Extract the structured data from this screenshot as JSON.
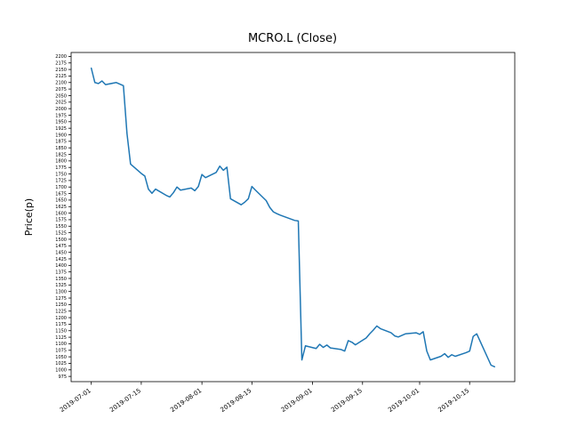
{
  "figure": {
    "background": "#ffffff"
  },
  "chart_data": {
    "type": "line",
    "title": "MCRO.L (Close)",
    "xlabel": "",
    "ylabel": "Price(p)",
    "line_color": "#1f77b4",
    "grid": false,
    "legend": "none",
    "ylim": [
      955,
      2215
    ],
    "y_ticks": {
      "min": 975,
      "max": 2200,
      "step": 25
    },
    "x_tick_labels": [
      "2019-07-01",
      "2019-07-15",
      "2019-08-01",
      "2019-08-15",
      "2019-09-01",
      "2019-09-15",
      "2019-10-01",
      "2019-10-15"
    ],
    "x": [
      "2019-07-01",
      "2019-07-02",
      "2019-07-03",
      "2019-07-04",
      "2019-07-05",
      "2019-07-08",
      "2019-07-09",
      "2019-07-10",
      "2019-07-11",
      "2019-07-12",
      "2019-07-15",
      "2019-07-16",
      "2019-07-17",
      "2019-07-18",
      "2019-07-19",
      "2019-07-22",
      "2019-07-23",
      "2019-07-24",
      "2019-07-25",
      "2019-07-26",
      "2019-07-29",
      "2019-07-30",
      "2019-07-31",
      "2019-08-01",
      "2019-08-02",
      "2019-08-05",
      "2019-08-06",
      "2019-08-07",
      "2019-08-08",
      "2019-08-09",
      "2019-08-12",
      "2019-08-13",
      "2019-08-14",
      "2019-08-15",
      "2019-08-16",
      "2019-08-19",
      "2019-08-20",
      "2019-08-21",
      "2019-08-22",
      "2019-08-23",
      "2019-08-27",
      "2019-08-28",
      "2019-08-29",
      "2019-08-30",
      "2019-09-02",
      "2019-09-03",
      "2019-09-04",
      "2019-09-05",
      "2019-09-06",
      "2019-09-09",
      "2019-09-10",
      "2019-09-11",
      "2019-09-12",
      "2019-09-13",
      "2019-09-16",
      "2019-09-17",
      "2019-09-18",
      "2019-09-19",
      "2019-09-20",
      "2019-09-23",
      "2019-09-24",
      "2019-09-25",
      "2019-09-26",
      "2019-09-27",
      "2019-09-30",
      "2019-10-01",
      "2019-10-02",
      "2019-10-03",
      "2019-10-04",
      "2019-10-07",
      "2019-10-08",
      "2019-10-09",
      "2019-10-10",
      "2019-10-11",
      "2019-10-14",
      "2019-10-15",
      "2019-10-16",
      "2019-10-17",
      "2019-10-18",
      "2019-10-21",
      "2019-10-22"
    ],
    "values": [
      2155,
      2100,
      2096,
      2106,
      2092,
      2100,
      2094,
      2088,
      1905,
      1788,
      1752,
      1742,
      1692,
      1676,
      1692,
      1668,
      1662,
      1678,
      1700,
      1688,
      1696,
      1686,
      1702,
      1748,
      1736,
      1756,
      1780,
      1764,
      1776,
      1655,
      1632,
      1642,
      1655,
      1702,
      1688,
      1648,
      1622,
      1605,
      1598,
      1592,
      1572,
      1570,
      1038,
      1092,
      1082,
      1098,
      1086,
      1095,
      1084,
      1078,
      1072,
      1112,
      1106,
      1096,
      1122,
      1138,
      1152,
      1168,
      1158,
      1142,
      1130,
      1126,
      1132,
      1138,
      1142,
      1136,
      1146,
      1072,
      1038,
      1052,
      1062,
      1048,
      1058,
      1052,
      1066,
      1072,
      1128,
      1138,
      1108,
      1018,
      1012
    ]
  }
}
